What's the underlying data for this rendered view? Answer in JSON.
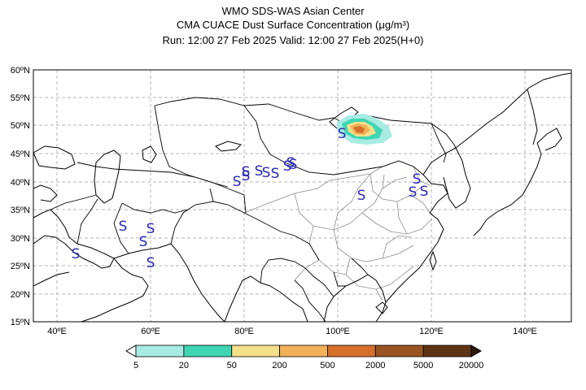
{
  "header": {
    "line1": "WMO SDS-WAS Asian Center",
    "line2": "CMA CUACE Dust Surface Concentration (μg/m³)",
    "line3": "Run: 12:00 27 Feb 2025     Valid: 12:00 27 Feb 2025(H+0)"
  },
  "map": {
    "lat_labels": [
      "60ºN",
      "55ºN",
      "50ºN",
      "45ºN",
      "40ºN",
      "35ºN",
      "30ºN",
      "25ºN",
      "20ºN",
      "15ºN"
    ],
    "lon_labels": [
      "40ºE",
      "60ºE",
      "80ºE",
      "100ºE",
      "120ºE",
      "140ºE"
    ],
    "extent": {
      "lon_min": 35,
      "lon_max": 150,
      "lat_min": 15,
      "lat_max": 60
    },
    "gridlines": true,
    "station_symbol": "S",
    "station_color": "#2a2ab5",
    "station_count": 19
  },
  "colorbar": {
    "labels": [
      "5",
      "20",
      "50",
      "200",
      "500",
      "2000",
      "5000",
      "20000"
    ],
    "colors": [
      "#a8ebe3",
      "#3fd6b3",
      "#f5e08a",
      "#f2b158",
      "#d6702b",
      "#9a5423",
      "#5e3416",
      "#2e1a0a"
    ]
  },
  "colors": {
    "coast": "#000000",
    "province": "#8c8c8c",
    "grid": "#b4b4b4"
  }
}
